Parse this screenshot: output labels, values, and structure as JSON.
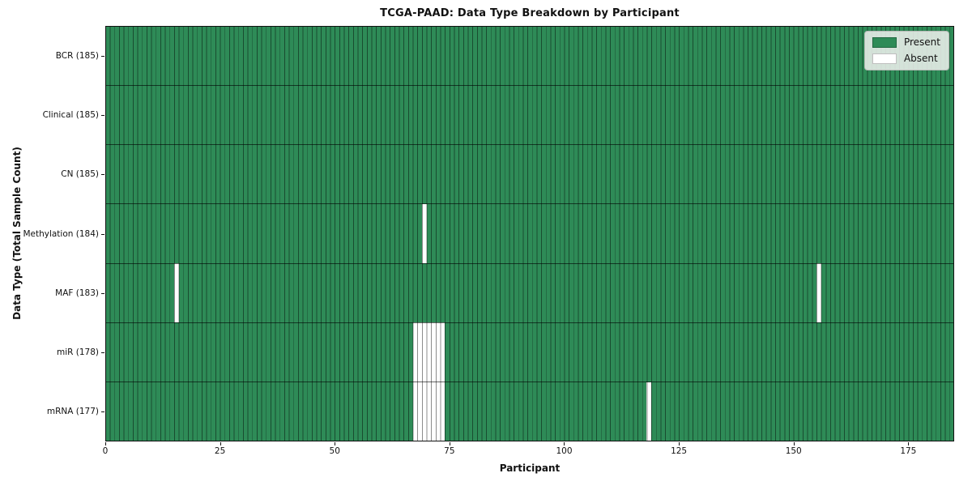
{
  "chart_data": {
    "type": "heatmap",
    "title": "TCGA-PAAD: Data Type Breakdown by Participant",
    "xlabel": "Participant",
    "ylabel": "Data Type (Total Sample Count)",
    "x_range": [
      0,
      185
    ],
    "n_participants": 185,
    "x_ticks": [
      0,
      25,
      50,
      75,
      100,
      125,
      150,
      175
    ],
    "rows": [
      {
        "label": "BCR (185)",
        "data_type": "BCR",
        "present_count": 185,
        "absent_participants": []
      },
      {
        "label": "Clinical (185)",
        "data_type": "Clinical",
        "present_count": 185,
        "absent_participants": []
      },
      {
        "label": "CN (185)",
        "data_type": "CN",
        "present_count": 185,
        "absent_participants": []
      },
      {
        "label": "Methylation (184)",
        "data_type": "Methylation",
        "present_count": 184,
        "absent_participants": [
          69
        ]
      },
      {
        "label": "MAF (183)",
        "data_type": "MAF",
        "present_count": 183,
        "absent_participants": [
          15,
          155
        ]
      },
      {
        "label": "miR (178)",
        "data_type": "miR",
        "present_count": 178,
        "absent_participants": [
          67,
          68,
          69,
          70,
          71,
          72,
          73
        ]
      },
      {
        "label": "mRNA (177)",
        "data_type": "mRNA",
        "present_count": 177,
        "absent_participants": [
          67,
          68,
          69,
          70,
          71,
          72,
          73,
          118
        ]
      }
    ],
    "legend": {
      "position": "upper right",
      "items": [
        {
          "label": "Present",
          "color": "#2e8b57"
        },
        {
          "label": "Absent",
          "color": "#ffffff"
        }
      ]
    },
    "colors": {
      "present": "#2e8b57",
      "absent": "#ffffff",
      "bar_edge": "rgba(0,0,0,0.45)",
      "row_separator": "rgba(0,0,0,0.6)",
      "spine": "#111111"
    },
    "grid": "per-participant bar edges",
    "legend_entries": [
      "Present",
      "Absent"
    ]
  }
}
